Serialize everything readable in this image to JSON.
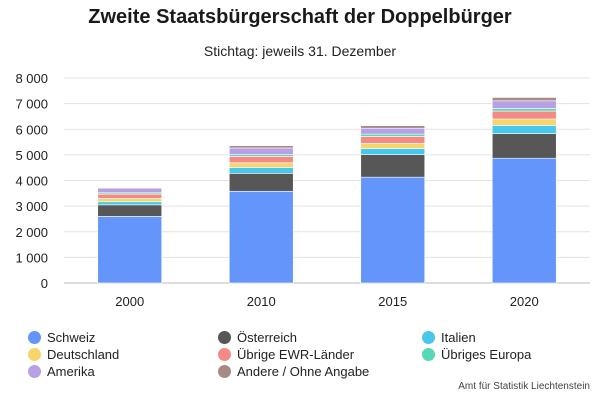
{
  "chart_data": {
    "type": "bar",
    "stacked": true,
    "title": "Zweite Staatsbürgerschaft der Doppelbürger",
    "subtitle": "Stichtag: jeweils 31. Dezember",
    "categories": [
      "2000",
      "2010",
      "2015",
      "2020"
    ],
    "ylim": [
      0,
      8000
    ],
    "yticks": [
      0,
      1000,
      2000,
      3000,
      4000,
      5000,
      6000,
      7000,
      8000
    ],
    "ytick_labels": [
      "0",
      "1 000",
      "2 000",
      "3 000",
      "4 000",
      "5 000",
      "6 000",
      "7 000",
      "8 000"
    ],
    "grid": true,
    "legend_position": "bottom",
    "series": [
      {
        "name": "Schweiz",
        "color": "#6495fb",
        "values": [
          2600,
          3580,
          4130,
          4870
        ]
      },
      {
        "name": "Österreich",
        "color": "#575757",
        "values": [
          450,
          700,
          880,
          960
        ]
      },
      {
        "name": "Italien",
        "color": "#47c7eb",
        "values": [
          120,
          230,
          240,
          320
        ]
      },
      {
        "name": "Deutschland",
        "color": "#f7d56a",
        "values": [
          130,
          180,
          200,
          250
        ]
      },
      {
        "name": "Übrige EWR-Länder",
        "color": "#f48a85",
        "values": [
          170,
          250,
          270,
          310
        ]
      },
      {
        "name": "Übriges Europa",
        "color": "#56d9b4",
        "values": [
          50,
          70,
          90,
          100
        ]
      },
      {
        "name": "Amerika",
        "color": "#b7a0e6",
        "values": [
          160,
          260,
          230,
          300
        ]
      },
      {
        "name": "Andere / Ohne Angabe",
        "color": "#a48c82",
        "values": [
          40,
          90,
          100,
          130
        ]
      }
    ]
  },
  "source": "Amt für Statistik Liechtenstein"
}
